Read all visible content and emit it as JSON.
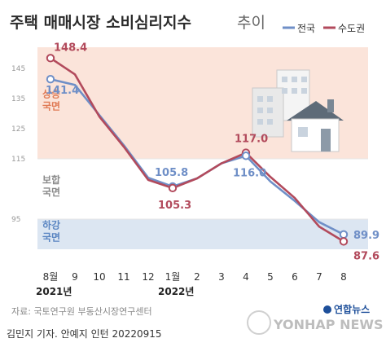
{
  "chart_data": {
    "type": "line",
    "title": "주택 매매시장 소비심리지수",
    "subtitle": "추이",
    "categories": [
      "8월",
      "9",
      "10",
      "11",
      "12",
      "1월",
      "2",
      "3",
      "4",
      "5",
      "6",
      "7",
      "8"
    ],
    "year_labels": [
      {
        "at": "8월",
        "text": "2021년"
      },
      {
        "at": "1월",
        "text": "2022년"
      }
    ],
    "y_ticks": [
      95,
      115,
      125,
      135,
      145
    ],
    "ylim": [
      85,
      152
    ],
    "series": [
      {
        "name": "전국",
        "color": "#6f8fc7",
        "values": [
          141.4,
          139.5,
          129.5,
          119.5,
          108.7,
          105.8,
          108.5,
          113.5,
          116.0,
          107.5,
          101.0,
          94.0,
          89.9
        ]
      },
      {
        "name": "수도권",
        "color": "#b24a5c",
        "values": [
          148.4,
          143.0,
          129.0,
          119.0,
          108.0,
          105.3,
          108.5,
          113.5,
          117.0,
          109.0,
          102.0,
          92.5,
          87.6
        ]
      }
    ],
    "data_labels": [
      {
        "series": "수도권",
        "index": 0,
        "text": "148.4"
      },
      {
        "series": "전국",
        "index": 0,
        "text": "141.4"
      },
      {
        "series": "전국",
        "index": 5,
        "text": "105.8"
      },
      {
        "series": "수도권",
        "index": 5,
        "text": "105.3"
      },
      {
        "series": "수도권",
        "index": 8,
        "text": "117.0"
      },
      {
        "series": "전국",
        "index": 8,
        "text": "116.0"
      },
      {
        "series": "전국",
        "index": 12,
        "text": "89.9"
      },
      {
        "series": "수도권",
        "index": 12,
        "text": "87.6"
      }
    ],
    "bands": [
      {
        "label": [
          "상승",
          "국면"
        ],
        "from": 115,
        "to": 152,
        "color": "#fbe4da",
        "text_color": "#e07a55"
      },
      {
        "label": [
          "보합",
          "국면"
        ],
        "from": 95,
        "to": 115,
        "color": "#ffffff",
        "text_color": "#8a8a8a"
      },
      {
        "label": [
          "하강",
          "국면"
        ],
        "from": 85,
        "to": 95,
        "color": "#dce6f2",
        "text_color": "#5b86c2"
      }
    ],
    "grid": false,
    "legend_position": "top-right"
  },
  "footer": {
    "source": "자료: 국토연구원 부동산시장연구센터",
    "credit": "김민지 기자. 안예지 인턴  20220915",
    "logo_kr": "연합뉴스",
    "logo_en": "YONHAP NEWS"
  }
}
